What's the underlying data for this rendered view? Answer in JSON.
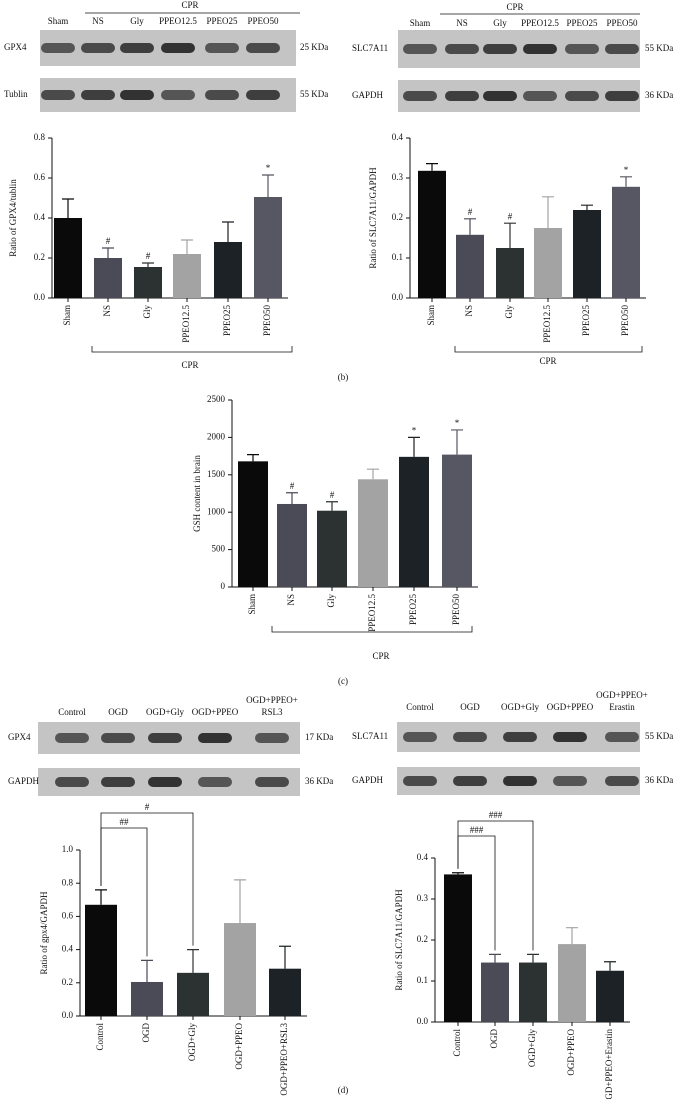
{
  "chart_data": [
    {
      "type": "bar",
      "y_label": "Ratio of GPX4/tublin",
      "categories": [
        "Sham",
        "NS",
        "Gly",
        "PPEO12.5",
        "PPEO25",
        "PPEO50"
      ],
      "values": [
        0.4,
        0.2,
        0.155,
        0.22,
        0.28,
        0.505
      ],
      "errors": [
        0.095,
        0.05,
        0.02,
        0.07,
        0.1,
        0.11
      ],
      "annotations": [
        null,
        "#",
        "#",
        null,
        null,
        "*"
      ],
      "colors": [
        "#0a0a0a",
        "#4a4b57",
        "#2c3232",
        "#a3a3a3",
        "#1d2226",
        "#565762"
      ],
      "ylim": [
        0,
        0.8
      ],
      "yticks": [
        {
          "value": 0,
          "label": "0.0"
        },
        0.2,
        0.4,
        0.6,
        0.8
      ],
      "group_label": "CPR"
    },
    {
      "type": "bar",
      "y_label": "Ratio of SLC7A11/GAPDH",
      "categories": [
        "Sham",
        "NS",
        "Gly",
        "PPEO12.5",
        "PPEO25",
        "PPEO50"
      ],
      "values": [
        0.318,
        0.158,
        0.125,
        0.175,
        0.22,
        0.278
      ],
      "errors": [
        0.018,
        0.04,
        0.062,
        0.078,
        0.012,
        0.025
      ],
      "annotations": [
        null,
        "#",
        "#",
        null,
        null,
        "*"
      ],
      "colors": [
        "#0a0a0a",
        "#4a4b57",
        "#2c3232",
        "#a3a3a3",
        "#1d2226",
        "#565762"
      ],
      "ylim": [
        0,
        0.4
      ],
      "yticks": [
        {
          "value": 0,
          "label": "0.0"
        },
        0.1,
        0.2,
        0.3,
        0.4
      ],
      "group_label": "CPR"
    },
    {
      "type": "bar",
      "y_label": "GSH content in brain",
      "categories": [
        "Sham",
        "NS",
        "Gly",
        "PPEO12.5",
        "PPEO25",
        "PPEO50"
      ],
      "values": [
        1680,
        1110,
        1020,
        1440,
        1740,
        1770
      ],
      "errors": [
        90,
        150,
        120,
        135,
        260,
        330
      ],
      "annotations": [
        null,
        "#",
        "#",
        null,
        "*",
        "*"
      ],
      "colors": [
        "#0a0a0a",
        "#4a4b57",
        "#2c3232",
        "#a3a3a3",
        "#1d2226",
        "#565762"
      ],
      "ylim": [
        0,
        2500
      ],
      "yticks": [
        0,
        500,
        1000,
        1500,
        2000,
        2500
      ],
      "group_label": "CPR"
    },
    {
      "type": "bar",
      "y_label": "Ratio of gpx4/GAPDH",
      "categories": [
        "Control",
        "OGD",
        "OGD+Gly",
        "OGD+PPEO",
        "OGD+PPEO+RSL3"
      ],
      "values": [
        0.67,
        0.205,
        0.26,
        0.56,
        0.285
      ],
      "errors": [
        0.09,
        0.13,
        0.14,
        0.26,
        0.135
      ],
      "colors": [
        "#0a0a0a",
        "#4a4b57",
        "#2c3232",
        "#a3a3a3",
        "#1d2226"
      ],
      "ylim": [
        0,
        1.0
      ],
      "yticks": [
        {
          "value": 0,
          "label": "0.0"
        },
        0.2,
        0.4,
        0.6,
        0.8,
        {
          "value": 1,
          "label": "1.0"
        }
      ],
      "brackets": [
        {
          "from": "Control",
          "to": "OGD",
          "text": "##"
        },
        {
          "from": "Control",
          "to": "OGD+Gly",
          "text": "#"
        }
      ]
    },
    {
      "type": "bar",
      "y_label": "Ratio of SLC7A11/GAPDH",
      "categories": [
        "Control",
        "OGD",
        "OGD+Gly",
        "OGD+PPEO",
        "OGD+PPEO+Erastin"
      ],
      "values": [
        0.36,
        0.145,
        0.145,
        0.19,
        0.125
      ],
      "errors": [
        0.004,
        0.02,
        0.02,
        0.04,
        0.022
      ],
      "colors": [
        "#0a0a0a",
        "#4a4b57",
        "#2c3232",
        "#a3a3a3",
        "#1d2226"
      ],
      "ylim": [
        0,
        0.4
      ],
      "yticks": [
        {
          "value": 0,
          "label": "0.0"
        },
        0.1,
        0.2,
        0.3,
        0.4
      ],
      "brackets": [
        {
          "from": "Control",
          "to": "OGD",
          "text": "###"
        },
        {
          "from": "Control",
          "to": "OGD+Gly",
          "text": "###"
        }
      ]
    }
  ],
  "blots": [
    {
      "group": "CPR",
      "lanes": [
        [
          "Sham"
        ],
        [
          "NS"
        ],
        [
          "Gly"
        ],
        [
          "PPEO12.5"
        ],
        [
          "PPEO25"
        ],
        [
          "PPEO50"
        ]
      ],
      "rows": [
        {
          "name": "GPX4",
          "size": "25 KDa"
        },
        {
          "name": "Tublin",
          "size": "55 KDa"
        }
      ]
    },
    {
      "group": "CPR",
      "lanes": [
        [
          "Sham"
        ],
        [
          "NS"
        ],
        [
          "Gly"
        ],
        [
          "PPEO12.5"
        ],
        [
          "PPEO25"
        ],
        [
          "PPEO50"
        ]
      ],
      "rows": [
        {
          "name": "SLC7A11",
          "size": "55 KDa"
        },
        {
          "name": "GAPDH",
          "size": "36 KDa"
        }
      ]
    },
    {
      "lanes": [
        [
          "Control"
        ],
        [
          "OGD"
        ],
        [
          "OGD+Gly"
        ],
        [
          "OGD+PPEO"
        ],
        [
          "OGD+PPEO+",
          "RSL3"
        ]
      ],
      "rows": [
        {
          "name": "GPX4",
          "size": "17 KDa"
        },
        {
          "name": "GAPDH",
          "size": "36 KDa"
        }
      ]
    },
    {
      "lanes": [
        [
          "Control"
        ],
        [
          "OGD"
        ],
        [
          "OGD+Gly"
        ],
        [
          "OGD+PPEO"
        ],
        [
          "OGD+PPEO+",
          "Erastin"
        ]
      ],
      "rows": [
        {
          "name": "SLC7A11",
          "size": "55 KDa"
        },
        {
          "name": "GAPDH",
          "size": "36 KDa"
        }
      ]
    }
  ],
  "panel_labels": [
    "(b)",
    "(c)",
    "(d)"
  ]
}
